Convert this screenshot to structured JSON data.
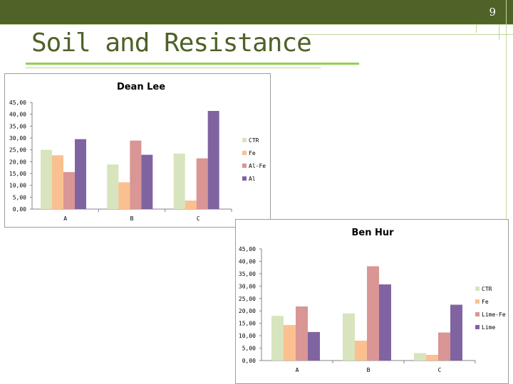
{
  "slide": {
    "page_number": "9",
    "title": "Soil and Resistance",
    "colors": {
      "header": "#4f6228",
      "accent": "#92d050",
      "title": "#4f6228"
    }
  },
  "chart_data": [
    {
      "type": "bar",
      "title": "Dean Lee",
      "categories": [
        "A",
        "B",
        "C"
      ],
      "series": [
        {
          "name": "CTR",
          "color": "#d7e4bd",
          "values": [
            25.0,
            18.8,
            23.4
          ]
        },
        {
          "name": "Fe",
          "color": "#fac090",
          "values": [
            22.7,
            11.3,
            3.6
          ]
        },
        {
          "name": "Al-Fe",
          "color": "#d99694",
          "values": [
            15.6,
            28.9,
            21.4
          ]
        },
        {
          "name": "Al",
          "color": "#8064a2",
          "values": [
            29.5,
            22.9,
            41.4
          ]
        }
      ],
      "ylim": [
        0,
        45
      ],
      "ytick_step": 5,
      "ytick_labels": [
        "0,00",
        "5,00",
        "10,00",
        "15,00",
        "20,00",
        "25,00",
        "30,00",
        "35,00",
        "40,00",
        "45,00"
      ],
      "legend": "right",
      "grid": false
    },
    {
      "type": "bar",
      "title": "Ben Hur",
      "categories": [
        "A",
        "B",
        "C"
      ],
      "series": [
        {
          "name": "CTR",
          "color": "#d7e4bd",
          "values": [
            18.0,
            19.0,
            3.0
          ]
        },
        {
          "name": "Fe",
          "color": "#fac090",
          "values": [
            14.3,
            8.0,
            2.3
          ]
        },
        {
          "name": "Lime-Fe",
          "color": "#d99694",
          "values": [
            21.8,
            38.0,
            11.3
          ]
        },
        {
          "name": "Lime",
          "color": "#8064a2",
          "values": [
            11.5,
            30.7,
            22.5
          ]
        }
      ],
      "ylim": [
        0,
        45
      ],
      "ytick_step": 5,
      "ytick_labels": [
        "0,00",
        "5,00",
        "10,00",
        "15,00",
        "20,00",
        "25,00",
        "30,00",
        "35,00",
        "40,00",
        "45,00"
      ],
      "legend": "right",
      "grid": false
    }
  ]
}
